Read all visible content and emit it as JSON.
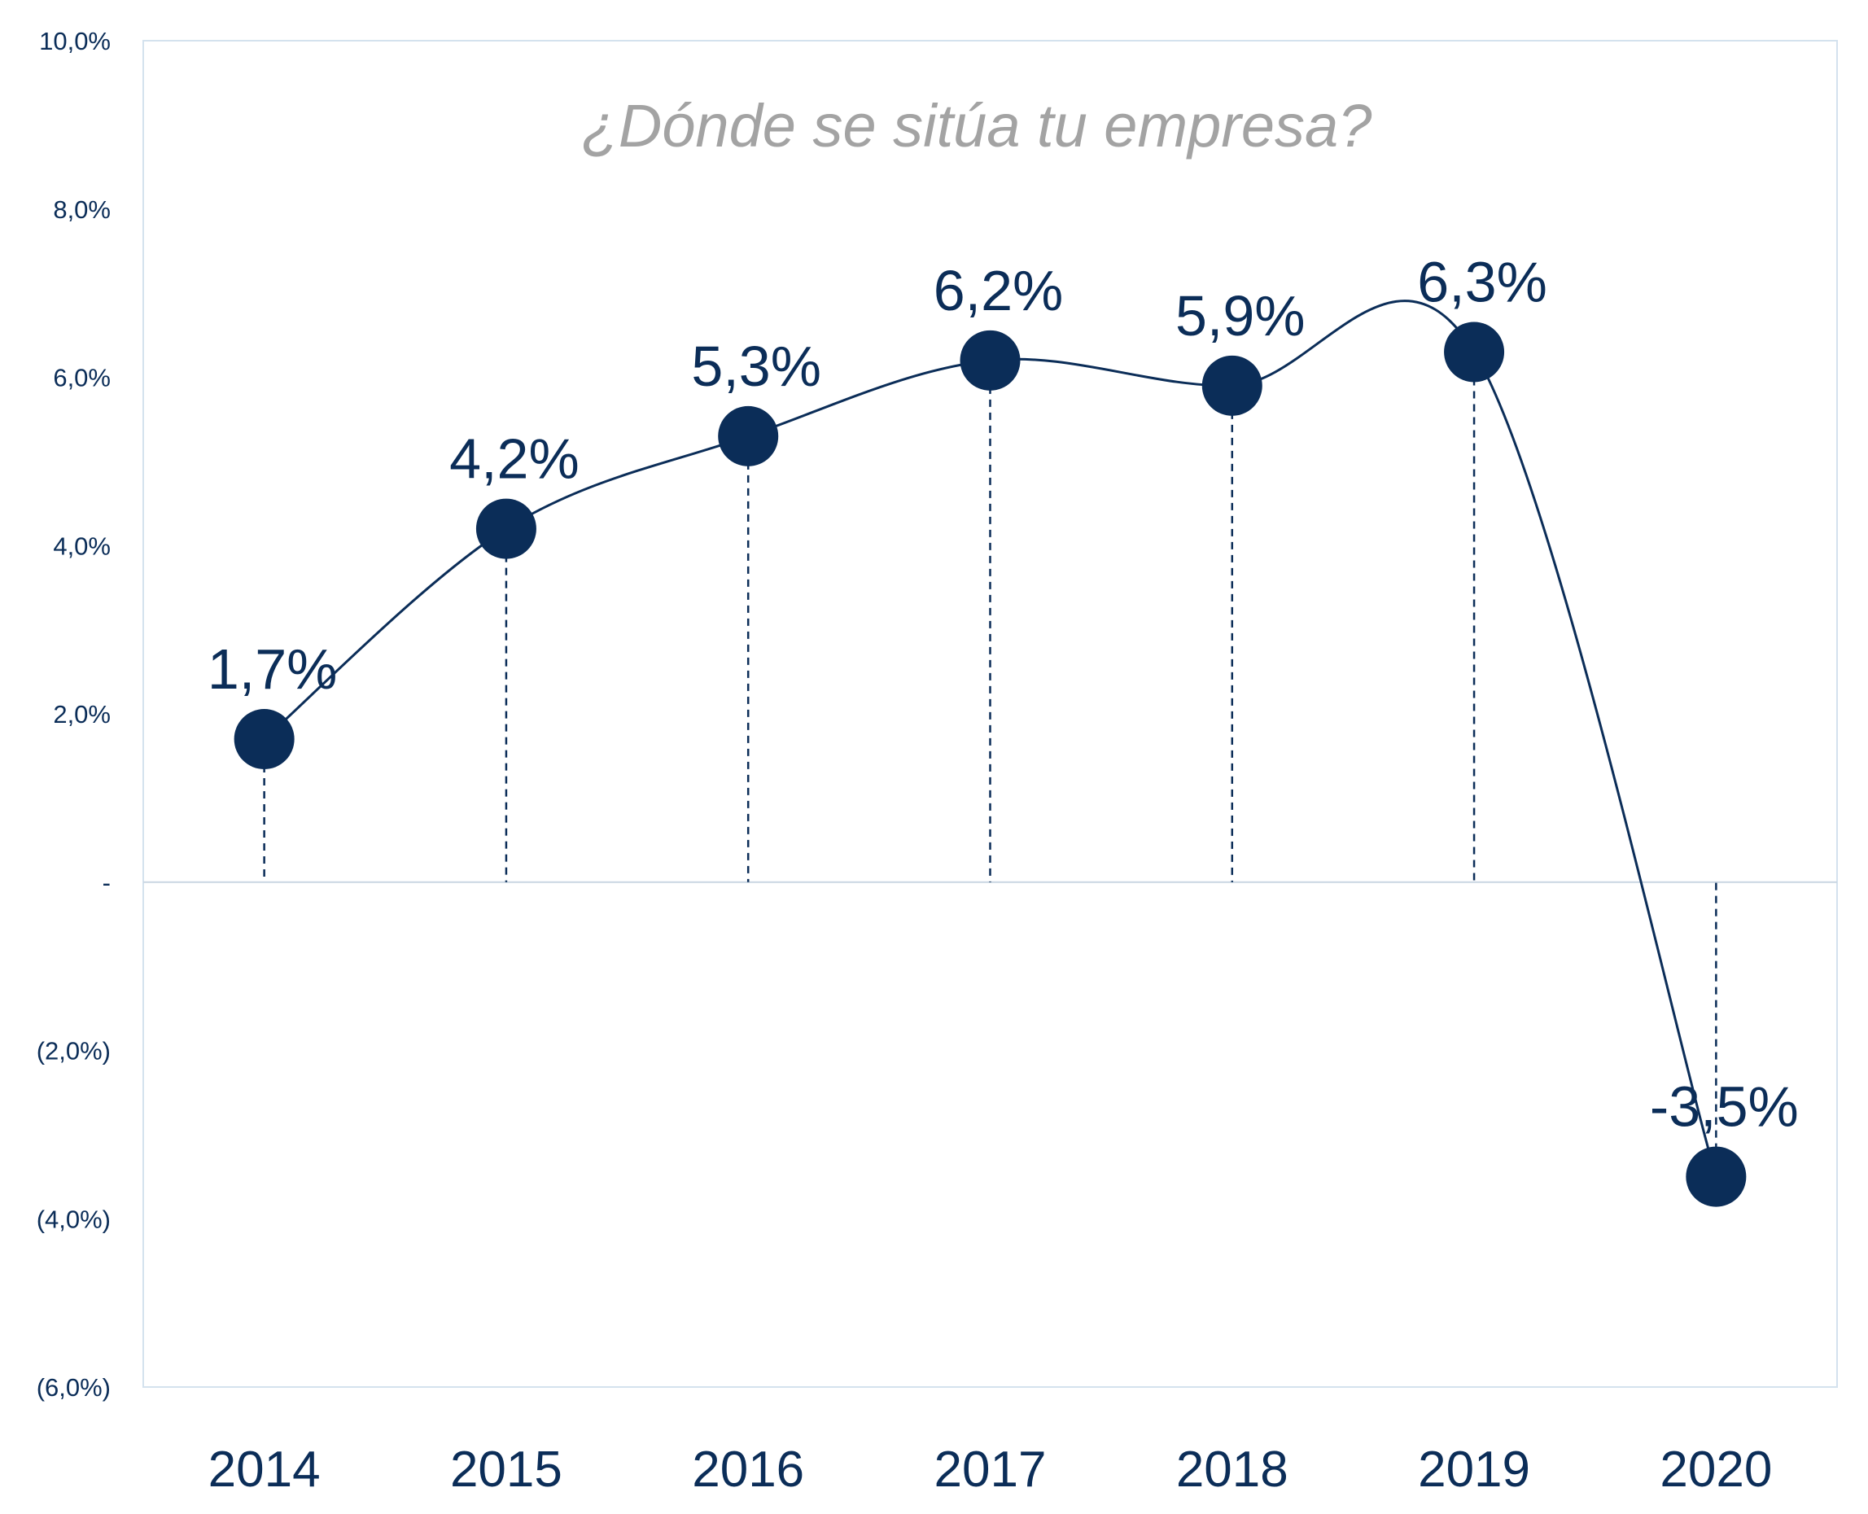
{
  "chart_data": {
    "type": "line",
    "title": "",
    "subtitle": "¿Dónde se sitúa tu empresa?",
    "xlabel": "",
    "ylabel": "",
    "categories": [
      "2014",
      "2015",
      "2016",
      "2017",
      "2018",
      "2019",
      "2020"
    ],
    "series": [
      {
        "values": [
          1.7,
          4.2,
          5.3,
          6.2,
          5.9,
          6.3,
          -3.5
        ],
        "labels": [
          "1,7%",
          "4,2%",
          "5,3%",
          "6,2%",
          "5,9%",
          "6,3%",
          "-3,5%"
        ]
      }
    ],
    "ylim": [
      -6,
      10
    ],
    "yticks": [
      10,
      8,
      6,
      4,
      2,
      0,
      -2,
      -4,
      -6
    ],
    "ytick_labels": [
      "10,0%",
      "8,0%",
      "6,0%",
      "4,0%",
      "2,0%",
      "-",
      "(2,0%)",
      "(4,0%)",
      "(6,0%)"
    ],
    "smooth": true,
    "markers": "filled-circle",
    "drop_lines": "dashed",
    "grid": false,
    "legend": "none",
    "colors": {
      "series": "#0b2d58",
      "axis_text": "#0b2d58",
      "subtitle": "#a3a3a3",
      "frame": "#d4e2ee"
    }
  }
}
